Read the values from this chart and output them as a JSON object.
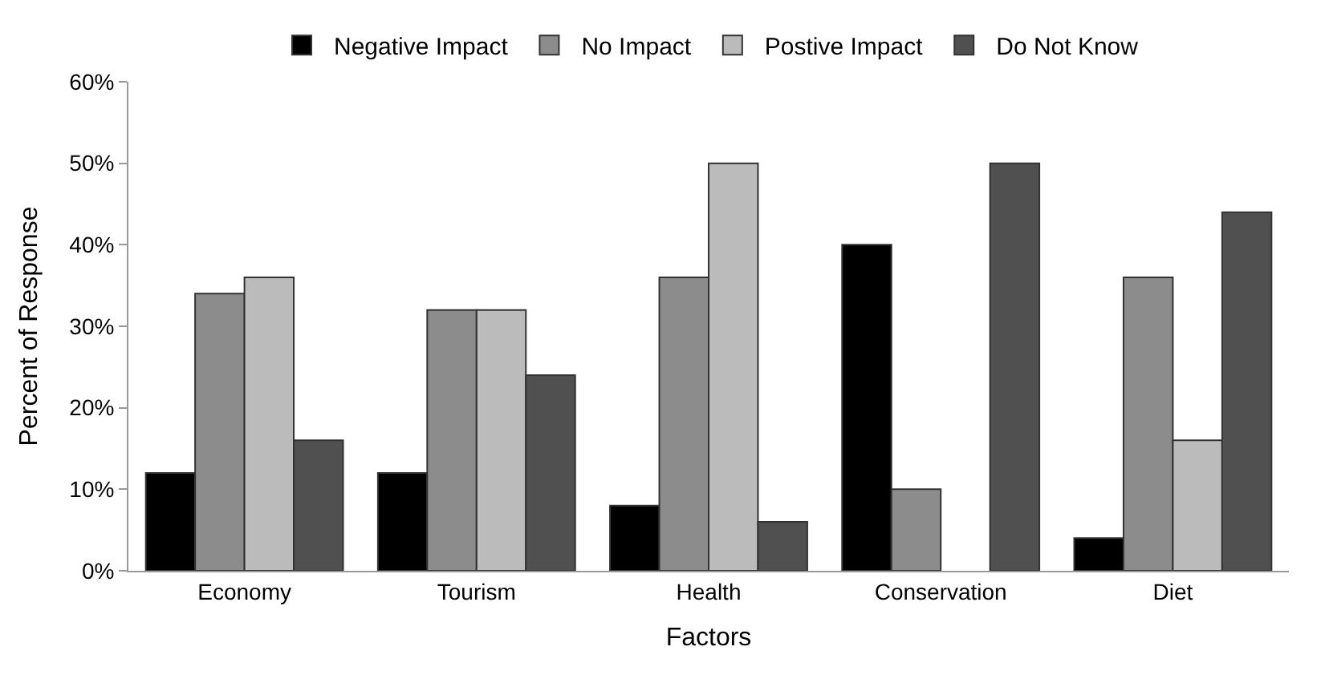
{
  "chart_data": {
    "type": "bar",
    "xlabel": "Factors",
    "ylabel": "Percent of Response",
    "categories": [
      "Economy",
      "Tourism",
      "Health",
      "Conservation",
      "Diet"
    ],
    "series": [
      {
        "name": "Negative Impact",
        "color": "#000000",
        "values": [
          12,
          12,
          8,
          40,
          4
        ]
      },
      {
        "name": "No Impact",
        "color": "#8c8c8c",
        "values": [
          34,
          32,
          36,
          10,
          36
        ]
      },
      {
        "name": "Postive Impact",
        "color": "#bbbbbb",
        "values": [
          36,
          32,
          50,
          null,
          16
        ]
      },
      {
        "name": "Do Not Know",
        "color": "#505050",
        "values": [
          16,
          24,
          6,
          50,
          44
        ]
      }
    ],
    "ylim": [
      0,
      60
    ],
    "yticks": [
      {
        "value": 0,
        "label": "0%"
      },
      {
        "value": 10,
        "label": "10%"
      },
      {
        "value": 20,
        "label": "20%"
      },
      {
        "value": 30,
        "label": "30%"
      },
      {
        "value": 40,
        "label": "40%"
      },
      {
        "value": 50,
        "label": "50%"
      },
      {
        "value": 60,
        "label": "60%"
      }
    ],
    "legend": "top"
  }
}
